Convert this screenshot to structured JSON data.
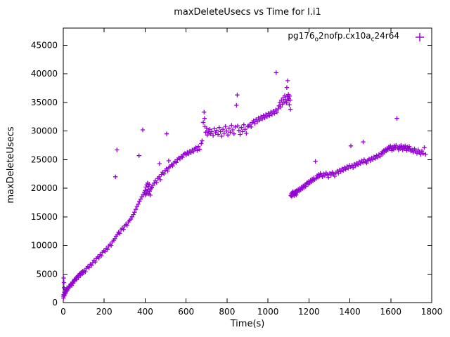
{
  "chart_data": {
    "type": "scatter",
    "title": "maxDeleteUsecs vs Time for l.i1",
    "xlabel": "Time(s)",
    "ylabel": "maxDeleteUsecs",
    "xlim": [
      0,
      1800
    ],
    "ylim": [
      0,
      48000
    ],
    "xticks": [
      0,
      200,
      400,
      600,
      800,
      1000,
      1200,
      1400,
      1600,
      1800
    ],
    "yticks": [
      0,
      5000,
      10000,
      15000,
      20000,
      25000,
      30000,
      35000,
      40000,
      45000
    ],
    "grid": false,
    "marker": "plus",
    "series_color": "#9400d3",
    "legend": {
      "position": "top-right-inside",
      "entries": [
        {
          "label_plain": "pg176_o2nofp.cx10a_c24r64",
          "label_parts": [
            {
              "t": "pg176"
            },
            {
              "t": "o",
              "sub": true
            },
            {
              "t": "2nofp.cx10a"
            },
            {
              "t": "c",
              "sub": true
            },
            {
              "t": "24r64"
            }
          ],
          "marker": "plus"
        }
      ]
    },
    "points": [
      [
        0,
        1100
      ],
      [
        1,
        800
      ],
      [
        2,
        1400
      ],
      [
        2,
        4300
      ],
      [
        3,
        3500
      ],
      [
        4,
        2600
      ],
      [
        5,
        1200
      ],
      [
        6,
        1800
      ],
      [
        8,
        1500
      ],
      [
        10,
        2100
      ],
      [
        12,
        1700
      ],
      [
        14,
        2300
      ],
      [
        16,
        2000
      ],
      [
        18,
        2600
      ],
      [
        20,
        2200
      ],
      [
        25,
        2500
      ],
      [
        28,
        2900
      ],
      [
        32,
        2700
      ],
      [
        35,
        3100
      ],
      [
        38,
        3300
      ],
      [
        42,
        3000
      ],
      [
        45,
        3600
      ],
      [
        48,
        3400
      ],
      [
        52,
        3800
      ],
      [
        55,
        4100
      ],
      [
        58,
        3900
      ],
      [
        62,
        4300
      ],
      [
        65,
        4000
      ],
      [
        68,
        4500
      ],
      [
        72,
        4700
      ],
      [
        75,
        4400
      ],
      [
        78,
        4900
      ],
      [
        82,
        5100
      ],
      [
        85,
        4800
      ],
      [
        88,
        5300
      ],
      [
        92,
        5000
      ],
      [
        95,
        5500
      ],
      [
        98,
        5200
      ],
      [
        102,
        5600
      ],
      [
        108,
        5400
      ],
      [
        114,
        6000
      ],
      [
        120,
        6300
      ],
      [
        126,
        6100
      ],
      [
        132,
        6700
      ],
      [
        138,
        6500
      ],
      [
        144,
        7000
      ],
      [
        150,
        7400
      ],
      [
        156,
        7100
      ],
      [
        162,
        7700
      ],
      [
        168,
        8000
      ],
      [
        174,
        7800
      ],
      [
        180,
        8400
      ],
      [
        186,
        8200
      ],
      [
        192,
        8800
      ],
      [
        198,
        9100
      ],
      [
        204,
        8900
      ],
      [
        210,
        9500
      ],
      [
        216,
        9300
      ],
      [
        222,
        9900
      ],
      [
        228,
        10200
      ],
      [
        234,
        10000
      ],
      [
        240,
        10600
      ],
      [
        246,
        10900
      ],
      [
        252,
        11200
      ],
      [
        255,
        22000
      ],
      [
        258,
        11600
      ],
      [
        262,
        26700
      ],
      [
        264,
        11900
      ],
      [
        270,
        12300
      ],
      [
        276,
        12100
      ],
      [
        282,
        12700
      ],
      [
        288,
        13000
      ],
      [
        294,
        12800
      ],
      [
        300,
        13400
      ],
      [
        306,
        13700
      ],
      [
        312,
        13500
      ],
      [
        318,
        14100
      ],
      [
        324,
        14400
      ],
      [
        330,
        14600
      ],
      [
        336,
        15000
      ],
      [
        342,
        15400
      ],
      [
        348,
        15800
      ],
      [
        354,
        16300
      ],
      [
        360,
        16800
      ],
      [
        366,
        17200
      ],
      [
        370,
        25700
      ],
      [
        372,
        17700
      ],
      [
        378,
        18100
      ],
      [
        384,
        18500
      ],
      [
        388,
        30200
      ],
      [
        390,
        18900
      ],
      [
        396,
        19300
      ],
      [
        400,
        19600
      ],
      [
        402,
        18800
      ],
      [
        404,
        20200
      ],
      [
        406,
        19100
      ],
      [
        408,
        20600
      ],
      [
        410,
        19400
      ],
      [
        412,
        20900
      ],
      [
        414,
        19800
      ],
      [
        416,
        20300
      ],
      [
        418,
        19000
      ],
      [
        420,
        20700
      ],
      [
        422,
        19500
      ],
      [
        425,
        18800
      ],
      [
        428,
        19900
      ],
      [
        432,
        20100
      ],
      [
        438,
        20500
      ],
      [
        444,
        20900
      ],
      [
        450,
        21300
      ],
      [
        456,
        21000
      ],
      [
        462,
        21700
      ],
      [
        468,
        22000
      ],
      [
        470,
        24300
      ],
      [
        474,
        21500
      ],
      [
        480,
        22400
      ],
      [
        486,
        22800
      ],
      [
        492,
        22500
      ],
      [
        498,
        23100
      ],
      [
        504,
        23400
      ],
      [
        505,
        29500
      ],
      [
        510,
        23000
      ],
      [
        515,
        24800
      ],
      [
        516,
        23600
      ],
      [
        522,
        23800
      ],
      [
        528,
        24100
      ],
      [
        534,
        23900
      ],
      [
        540,
        24400
      ],
      [
        546,
        24700
      ],
      [
        552,
        24500
      ],
      [
        558,
        25000
      ],
      [
        564,
        25300
      ],
      [
        570,
        25100
      ],
      [
        576,
        25600
      ],
      [
        582,
        25400
      ],
      [
        588,
        25900
      ],
      [
        594,
        26100
      ],
      [
        600,
        25800
      ],
      [
        606,
        26300
      ],
      [
        612,
        26000
      ],
      [
        618,
        26500
      ],
      [
        624,
        26200
      ],
      [
        630,
        26700
      ],
      [
        636,
        26400
      ],
      [
        642,
        26900
      ],
      [
        648,
        27100
      ],
      [
        654,
        26600
      ],
      [
        660,
        27300
      ],
      [
        666,
        26800
      ],
      [
        674,
        27800
      ],
      [
        678,
        28300
      ],
      [
        684,
        31500
      ],
      [
        688,
        33300
      ],
      [
        690,
        32200
      ],
      [
        692,
        30800
      ],
      [
        696,
        29800
      ],
      [
        700,
        30500
      ],
      [
        704,
        29300
      ],
      [
        708,
        30000
      ],
      [
        712,
        29600
      ],
      [
        716,
        30300
      ],
      [
        720,
        29500
      ],
      [
        726,
        29900
      ],
      [
        732,
        29200
      ],
      [
        738,
        30400
      ],
      [
        744,
        29700
      ],
      [
        750,
        30100
      ],
      [
        756,
        29400
      ],
      [
        762,
        30600
      ],
      [
        768,
        29900
      ],
      [
        774,
        29100
      ],
      [
        780,
        30300
      ],
      [
        786,
        29600
      ],
      [
        792,
        30800
      ],
      [
        798,
        30000
      ],
      [
        804,
        29300
      ],
      [
        810,
        30500
      ],
      [
        816,
        29800
      ],
      [
        822,
        31000
      ],
      [
        828,
        30200
      ],
      [
        834,
        29500
      ],
      [
        840,
        30700
      ],
      [
        846,
        34500
      ],
      [
        850,
        36300
      ],
      [
        852,
        30900
      ],
      [
        858,
        30100
      ],
      [
        864,
        29400
      ],
      [
        870,
        30600
      ],
      [
        876,
        29900
      ],
      [
        882,
        31100
      ],
      [
        888,
        30300
      ],
      [
        894,
        29600
      ],
      [
        900,
        30800
      ],
      [
        906,
        30900
      ],
      [
        912,
        31200
      ],
      [
        918,
        30700
      ],
      [
        924,
        31500
      ],
      [
        930,
        31800
      ],
      [
        936,
        31300
      ],
      [
        942,
        32000
      ],
      [
        948,
        31600
      ],
      [
        954,
        32300
      ],
      [
        960,
        31900
      ],
      [
        966,
        32500
      ],
      [
        972,
        32100
      ],
      [
        978,
        32700
      ],
      [
        984,
        32300
      ],
      [
        990,
        32900
      ],
      [
        996,
        32500
      ],
      [
        1002,
        33100
      ],
      [
        1008,
        32700
      ],
      [
        1014,
        33300
      ],
      [
        1020,
        32900
      ],
      [
        1026,
        33500
      ],
      [
        1032,
        33100
      ],
      [
        1038,
        33700
      ],
      [
        1040,
        40200
      ],
      [
        1044,
        33300
      ],
      [
        1050,
        33900
      ],
      [
        1054,
        34400
      ],
      [
        1058,
        35000
      ],
      [
        1062,
        34200
      ],
      [
        1066,
        35400
      ],
      [
        1070,
        34700
      ],
      [
        1074,
        35800
      ],
      [
        1078,
        35100
      ],
      [
        1082,
        36200
      ],
      [
        1086,
        35500
      ],
      [
        1090,
        34900
      ],
      [
        1092,
        37600
      ],
      [
        1094,
        36000
      ],
      [
        1096,
        38800
      ],
      [
        1098,
        35300
      ],
      [
        1100,
        36400
      ],
      [
        1102,
        35700
      ],
      [
        1104,
        34600
      ],
      [
        1106,
        36100
      ],
      [
        1108,
        35400
      ],
      [
        1110,
        33800
      ],
      [
        1112,
        18700
      ],
      [
        1114,
        19000
      ],
      [
        1116,
        18600
      ],
      [
        1118,
        19200
      ],
      [
        1120,
        18800
      ],
      [
        1122,
        19400
      ],
      [
        1124,
        18900
      ],
      [
        1126,
        19100
      ],
      [
        1128,
        18700
      ],
      [
        1130,
        19300
      ],
      [
        1132,
        19000
      ],
      [
        1134,
        19500
      ],
      [
        1136,
        19200
      ],
      [
        1138,
        18800
      ],
      [
        1140,
        19600
      ],
      [
        1144,
        19300
      ],
      [
        1148,
        19800
      ],
      [
        1152,
        19500
      ],
      [
        1156,
        20000
      ],
      [
        1160,
        19700
      ],
      [
        1164,
        20200
      ],
      [
        1168,
        19900
      ],
      [
        1172,
        20400
      ],
      [
        1176,
        20100
      ],
      [
        1180,
        20600
      ],
      [
        1184,
        20300
      ],
      [
        1188,
        20800
      ],
      [
        1192,
        21000
      ],
      [
        1196,
        20700
      ],
      [
        1200,
        21200
      ],
      [
        1204,
        20900
      ],
      [
        1208,
        21400
      ],
      [
        1212,
        21100
      ],
      [
        1216,
        21600
      ],
      [
        1220,
        21300
      ],
      [
        1224,
        21800
      ],
      [
        1228,
        21500
      ],
      [
        1232,
        24700
      ],
      [
        1236,
        21700
      ],
      [
        1240,
        22200
      ],
      [
        1244,
        21900
      ],
      [
        1248,
        22400
      ],
      [
        1252,
        22100
      ],
      [
        1256,
        22600
      ],
      [
        1260,
        22300
      ],
      [
        1266,
        22000
      ],
      [
        1272,
        22500
      ],
      [
        1278,
        22200
      ],
      [
        1284,
        22700
      ],
      [
        1290,
        22400
      ],
      [
        1296,
        21900
      ],
      [
        1302,
        22600
      ],
      [
        1308,
        22300
      ],
      [
        1314,
        22800
      ],
      [
        1320,
        22500
      ],
      [
        1326,
        22100
      ],
      [
        1332,
        22700
      ],
      [
        1338,
        23000
      ],
      [
        1344,
        22600
      ],
      [
        1350,
        23200
      ],
      [
        1356,
        22900
      ],
      [
        1362,
        23400
      ],
      [
        1368,
        23100
      ],
      [
        1374,
        23600
      ],
      [
        1380,
        23300
      ],
      [
        1386,
        23800
      ],
      [
        1392,
        23500
      ],
      [
        1398,
        24000
      ],
      [
        1404,
        23700
      ],
      [
        1405,
        27400
      ],
      [
        1410,
        24000
      ],
      [
        1416,
        23600
      ],
      [
        1422,
        24200
      ],
      [
        1428,
        23900
      ],
      [
        1434,
        24400
      ],
      [
        1440,
        24100
      ],
      [
        1446,
        24600
      ],
      [
        1452,
        24300
      ],
      [
        1458,
        24800
      ],
      [
        1464,
        24500
      ],
      [
        1465,
        28100
      ],
      [
        1470,
        25000
      ],
      [
        1476,
        24700
      ],
      [
        1482,
        24400
      ],
      [
        1488,
        24900
      ],
      [
        1494,
        25100
      ],
      [
        1500,
        24800
      ],
      [
        1506,
        25300
      ],
      [
        1512,
        25000
      ],
      [
        1518,
        25500
      ],
      [
        1524,
        25200
      ],
      [
        1530,
        25700
      ],
      [
        1536,
        25400
      ],
      [
        1542,
        25900
      ],
      [
        1548,
        25600
      ],
      [
        1554,
        26100
      ],
      [
        1558,
        26400
      ],
      [
        1562,
        26000
      ],
      [
        1566,
        26600
      ],
      [
        1570,
        26300
      ],
      [
        1574,
        26800
      ],
      [
        1578,
        26500
      ],
      [
        1582,
        27000
      ],
      [
        1586,
        26700
      ],
      [
        1590,
        27200
      ],
      [
        1594,
        26900
      ],
      [
        1598,
        27400
      ],
      [
        1602,
        27000
      ],
      [
        1606,
        26600
      ],
      [
        1610,
        27200
      ],
      [
        1614,
        26800
      ],
      [
        1618,
        27400
      ],
      [
        1622,
        27000
      ],
      [
        1626,
        27500
      ],
      [
        1630,
        32200
      ],
      [
        1634,
        27100
      ],
      [
        1638,
        26700
      ],
      [
        1642,
        27300
      ],
      [
        1646,
        26900
      ],
      [
        1650,
        27500
      ],
      [
        1654,
        27100
      ],
      [
        1658,
        26700
      ],
      [
        1662,
        27300
      ],
      [
        1666,
        26900
      ],
      [
        1670,
        27400
      ],
      [
        1674,
        27000
      ],
      [
        1678,
        26600
      ],
      [
        1682,
        27200
      ],
      [
        1686,
        26800
      ],
      [
        1690,
        27300
      ],
      [
        1694,
        26900
      ],
      [
        1698,
        26500
      ],
      [
        1704,
        26700
      ],
      [
        1710,
        26300
      ],
      [
        1716,
        26900
      ],
      [
        1722,
        26500
      ],
      [
        1728,
        26100
      ],
      [
        1734,
        26700
      ],
      [
        1740,
        26300
      ],
      [
        1746,
        25900
      ],
      [
        1752,
        26500
      ],
      [
        1758,
        26100
      ],
      [
        1764,
        27100
      ],
      [
        1770,
        25900
      ]
    ]
  }
}
